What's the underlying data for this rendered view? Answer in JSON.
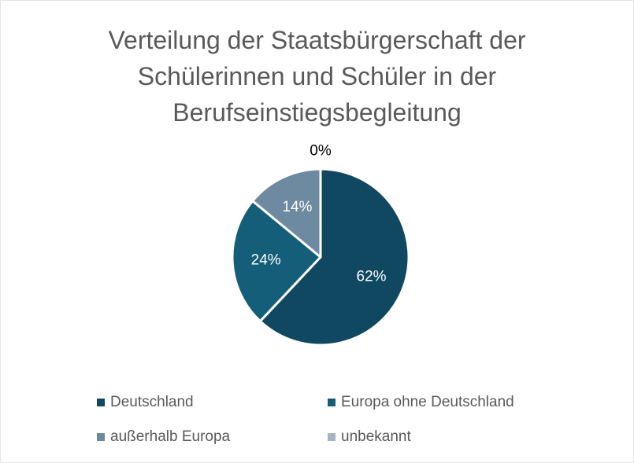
{
  "chart_data": {
    "type": "pie",
    "title": "Verteilung der Staatsbürgerschaft der Schülerinnen und Schüler in der Berufseinstiegsbegleitung",
    "categories": [
      "Deutschland",
      "Europa ohne Deutschland",
      "außerhalb Europa",
      "unbekannt"
    ],
    "values": [
      62,
      24,
      14,
      0
    ],
    "value_labels": [
      "62%",
      "24%",
      "14%",
      "0%"
    ],
    "colors": [
      "#104862",
      "#155e7a",
      "#6e8aa0",
      "#a5b4c2"
    ],
    "legend": "bottom"
  }
}
